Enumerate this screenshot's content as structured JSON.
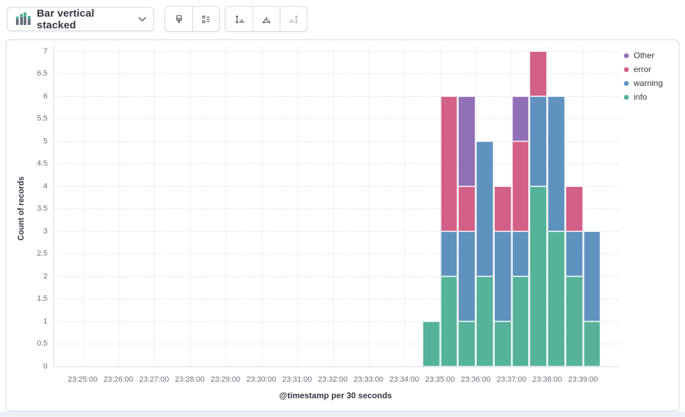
{
  "toolbar": {
    "chart_type_dropdown": {
      "label": "Bar vertical stacked",
      "icon": "stacked-bar-chart-icon"
    },
    "buttons": [
      {
        "name": "visual-options",
        "icon": "paintbrush-icon",
        "disabled": false
      },
      {
        "name": "legend-settings",
        "icon": "legend-list-icon",
        "disabled": false
      },
      {
        "name": "left-axis-settings",
        "icon": "vertical-axis-icon",
        "disabled": false
      },
      {
        "name": "bottom-axis-settings",
        "icon": "horizontal-axis-icon",
        "disabled": false
      },
      {
        "name": "right-axis-settings",
        "icon": "right-axis-icon",
        "disabled": true
      }
    ]
  },
  "legend": {
    "position": "right",
    "items": [
      {
        "label": "Other",
        "color": "#9170B8"
      },
      {
        "label": "error",
        "color": "#D36086"
      },
      {
        "label": "warning",
        "color": "#6092C0"
      },
      {
        "label": "info",
        "color": "#54B399"
      }
    ]
  },
  "chart_data": {
    "type": "bar",
    "stacked": true,
    "orientation": "vertical",
    "title": "",
    "xlabel": "@timestamp per 30 seconds",
    "ylabel": "Count of records",
    "ylim": [
      0,
      7
    ],
    "y_tick_step": 0.5,
    "grid": true,
    "legend_position": "right",
    "bucket_seconds": 30,
    "x_tick_labels": [
      "23:25:00",
      "23:26:00",
      "23:27:00",
      "23:28:00",
      "23:29:00",
      "23:30:00",
      "23:31:00",
      "23:32:00",
      "23:33:00",
      "23:34:00",
      "23:35:00",
      "23:36:00",
      "23:37:00",
      "23:38:00",
      "23:39:00"
    ],
    "series": [
      {
        "name": "info",
        "color": "#54B399"
      },
      {
        "name": "warning",
        "color": "#6092C0"
      },
      {
        "name": "error",
        "color": "#D36086"
      },
      {
        "name": "Other",
        "color": "#9170B8"
      }
    ],
    "buckets": [
      {
        "start": "23:34:30",
        "info": 1,
        "warning": 0,
        "error": 0,
        "Other": 0
      },
      {
        "start": "23:35:00",
        "info": 2,
        "warning": 1,
        "error": 3,
        "Other": 0
      },
      {
        "start": "23:35:30",
        "info": 1,
        "warning": 2,
        "error": 1,
        "Other": 2
      },
      {
        "start": "23:36:00",
        "info": 2,
        "warning": 3,
        "error": 0,
        "Other": 0
      },
      {
        "start": "23:36:30",
        "info": 1,
        "warning": 2,
        "error": 1,
        "Other": 0
      },
      {
        "start": "23:37:00",
        "info": 2,
        "warning": 1,
        "error": 2,
        "Other": 1
      },
      {
        "start": "23:37:30",
        "info": 4,
        "warning": 2,
        "error": 1,
        "Other": 0
      },
      {
        "start": "23:38:00",
        "info": 3,
        "warning": 3,
        "error": 0,
        "Other": 0
      },
      {
        "start": "23:38:30",
        "info": 2,
        "warning": 1,
        "error": 1,
        "Other": 0
      },
      {
        "start": "23:39:00",
        "info": 1,
        "warning": 2,
        "error": 0,
        "Other": 0
      }
    ]
  },
  "colors": {
    "border": "#d3dae6",
    "icon_default": "#53575e",
    "icon_disabled": "#a9b2c1",
    "tick_text": "#69707D",
    "grid_h": "#dfe3ed",
    "grid_v": "#eef1f6",
    "axis_line": "#d8dde8",
    "icon_green": "#54B399",
    "icon_gray": "#69707D"
  }
}
